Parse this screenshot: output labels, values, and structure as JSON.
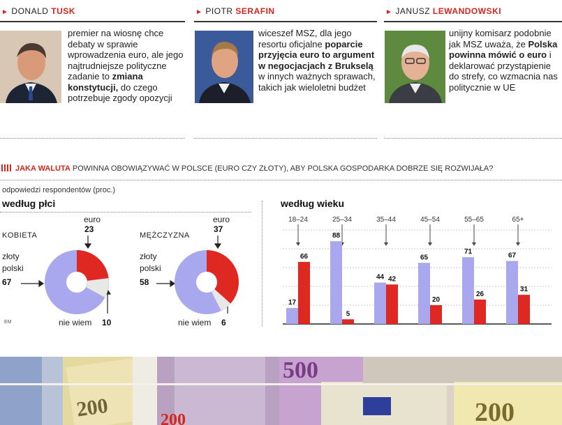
{
  "politicians": [
    {
      "first_name": "DONALD",
      "surname": "TUSK",
      "quote_parts": [
        {
          "t": "premier na wiosnę chce debaty w sprawie wprowadzenia euro, ale jego najtrudniejsze polityczne zadanie to ",
          "b": false
        },
        {
          "t": "zmiana konstytucji,",
          "b": true
        },
        {
          "t": " do czego potrzebuje zgody opozycji",
          "b": false
        }
      ]
    },
    {
      "first_name": "PIOTR",
      "surname": "SERAFIN",
      "quote_parts": [
        {
          "t": "wiceszef MSZ, dla jego resortu oficjalne ",
          "b": false
        },
        {
          "t": "poparcie przyjęcia euro to argument w negocjacjach z Brukselą",
          "b": true
        },
        {
          "t": " w innych ważnych sprawach, takich jak wieloletni budżet",
          "b": false
        }
      ]
    },
    {
      "first_name": "JANUSZ",
      "surname": "LEWANDOWSKI",
      "quote_parts": [
        {
          "t": "unijny komisarz podobnie jak MSZ uważa, że ",
          "b": false
        },
        {
          "t": "Polska powinna mówić o euro",
          "b": true
        },
        {
          "t": " i deklarować przystąpienie do strefy, co wzmacnia nas politycznie w UE",
          "b": false
        }
      ]
    }
  ],
  "question": {
    "highlight": "JAKA WALUTA",
    "rest": "POWINNA OBOWIĄZYWAĆ W POLSCE (EURO CZY ZŁOTY), ABY POLSKA GOSPODARKA DOBRZE SIĘ ROZWIJAŁA?"
  },
  "respondents_note": "odpowiedzi respondentów (proc.)",
  "source_mark": "EM",
  "colors": {
    "euro": "#e02822",
    "zloty": "#a9a7ee",
    "unknown": "#e8e8e8",
    "accent": "#d4261c"
  },
  "chart_data": [
    {
      "type": "pie",
      "title": "według płci",
      "groups": [
        {
          "name": "KOBIETA",
          "slices": [
            {
              "label": "euro",
              "value": 23
            },
            {
              "label": "złoty polski",
              "value": 67
            },
            {
              "label": "nie wiem",
              "value": 10
            }
          ]
        },
        {
          "name": "MĘŻCZYZNA",
          "slices": [
            {
              "label": "euro",
              "value": 37
            },
            {
              "label": "złoty polski",
              "value": 58
            },
            {
              "label": "nie wiem",
              "value": 6
            }
          ]
        }
      ]
    },
    {
      "type": "bar",
      "title": "według wieku",
      "categories": [
        "18–24",
        "25–34",
        "35–44",
        "45–54",
        "55–65",
        "65+"
      ],
      "series": [
        {
          "name": "złoty",
          "values": [
            17,
            88,
            44,
            65,
            71,
            67
          ]
        },
        {
          "name": "euro",
          "values": [
            66,
            5,
            42,
            20,
            26,
            31
          ]
        }
      ],
      "ylim": [
        0,
        100
      ]
    }
  ],
  "banknotes": [
    "200",
    "500",
    "200",
    "200"
  ]
}
